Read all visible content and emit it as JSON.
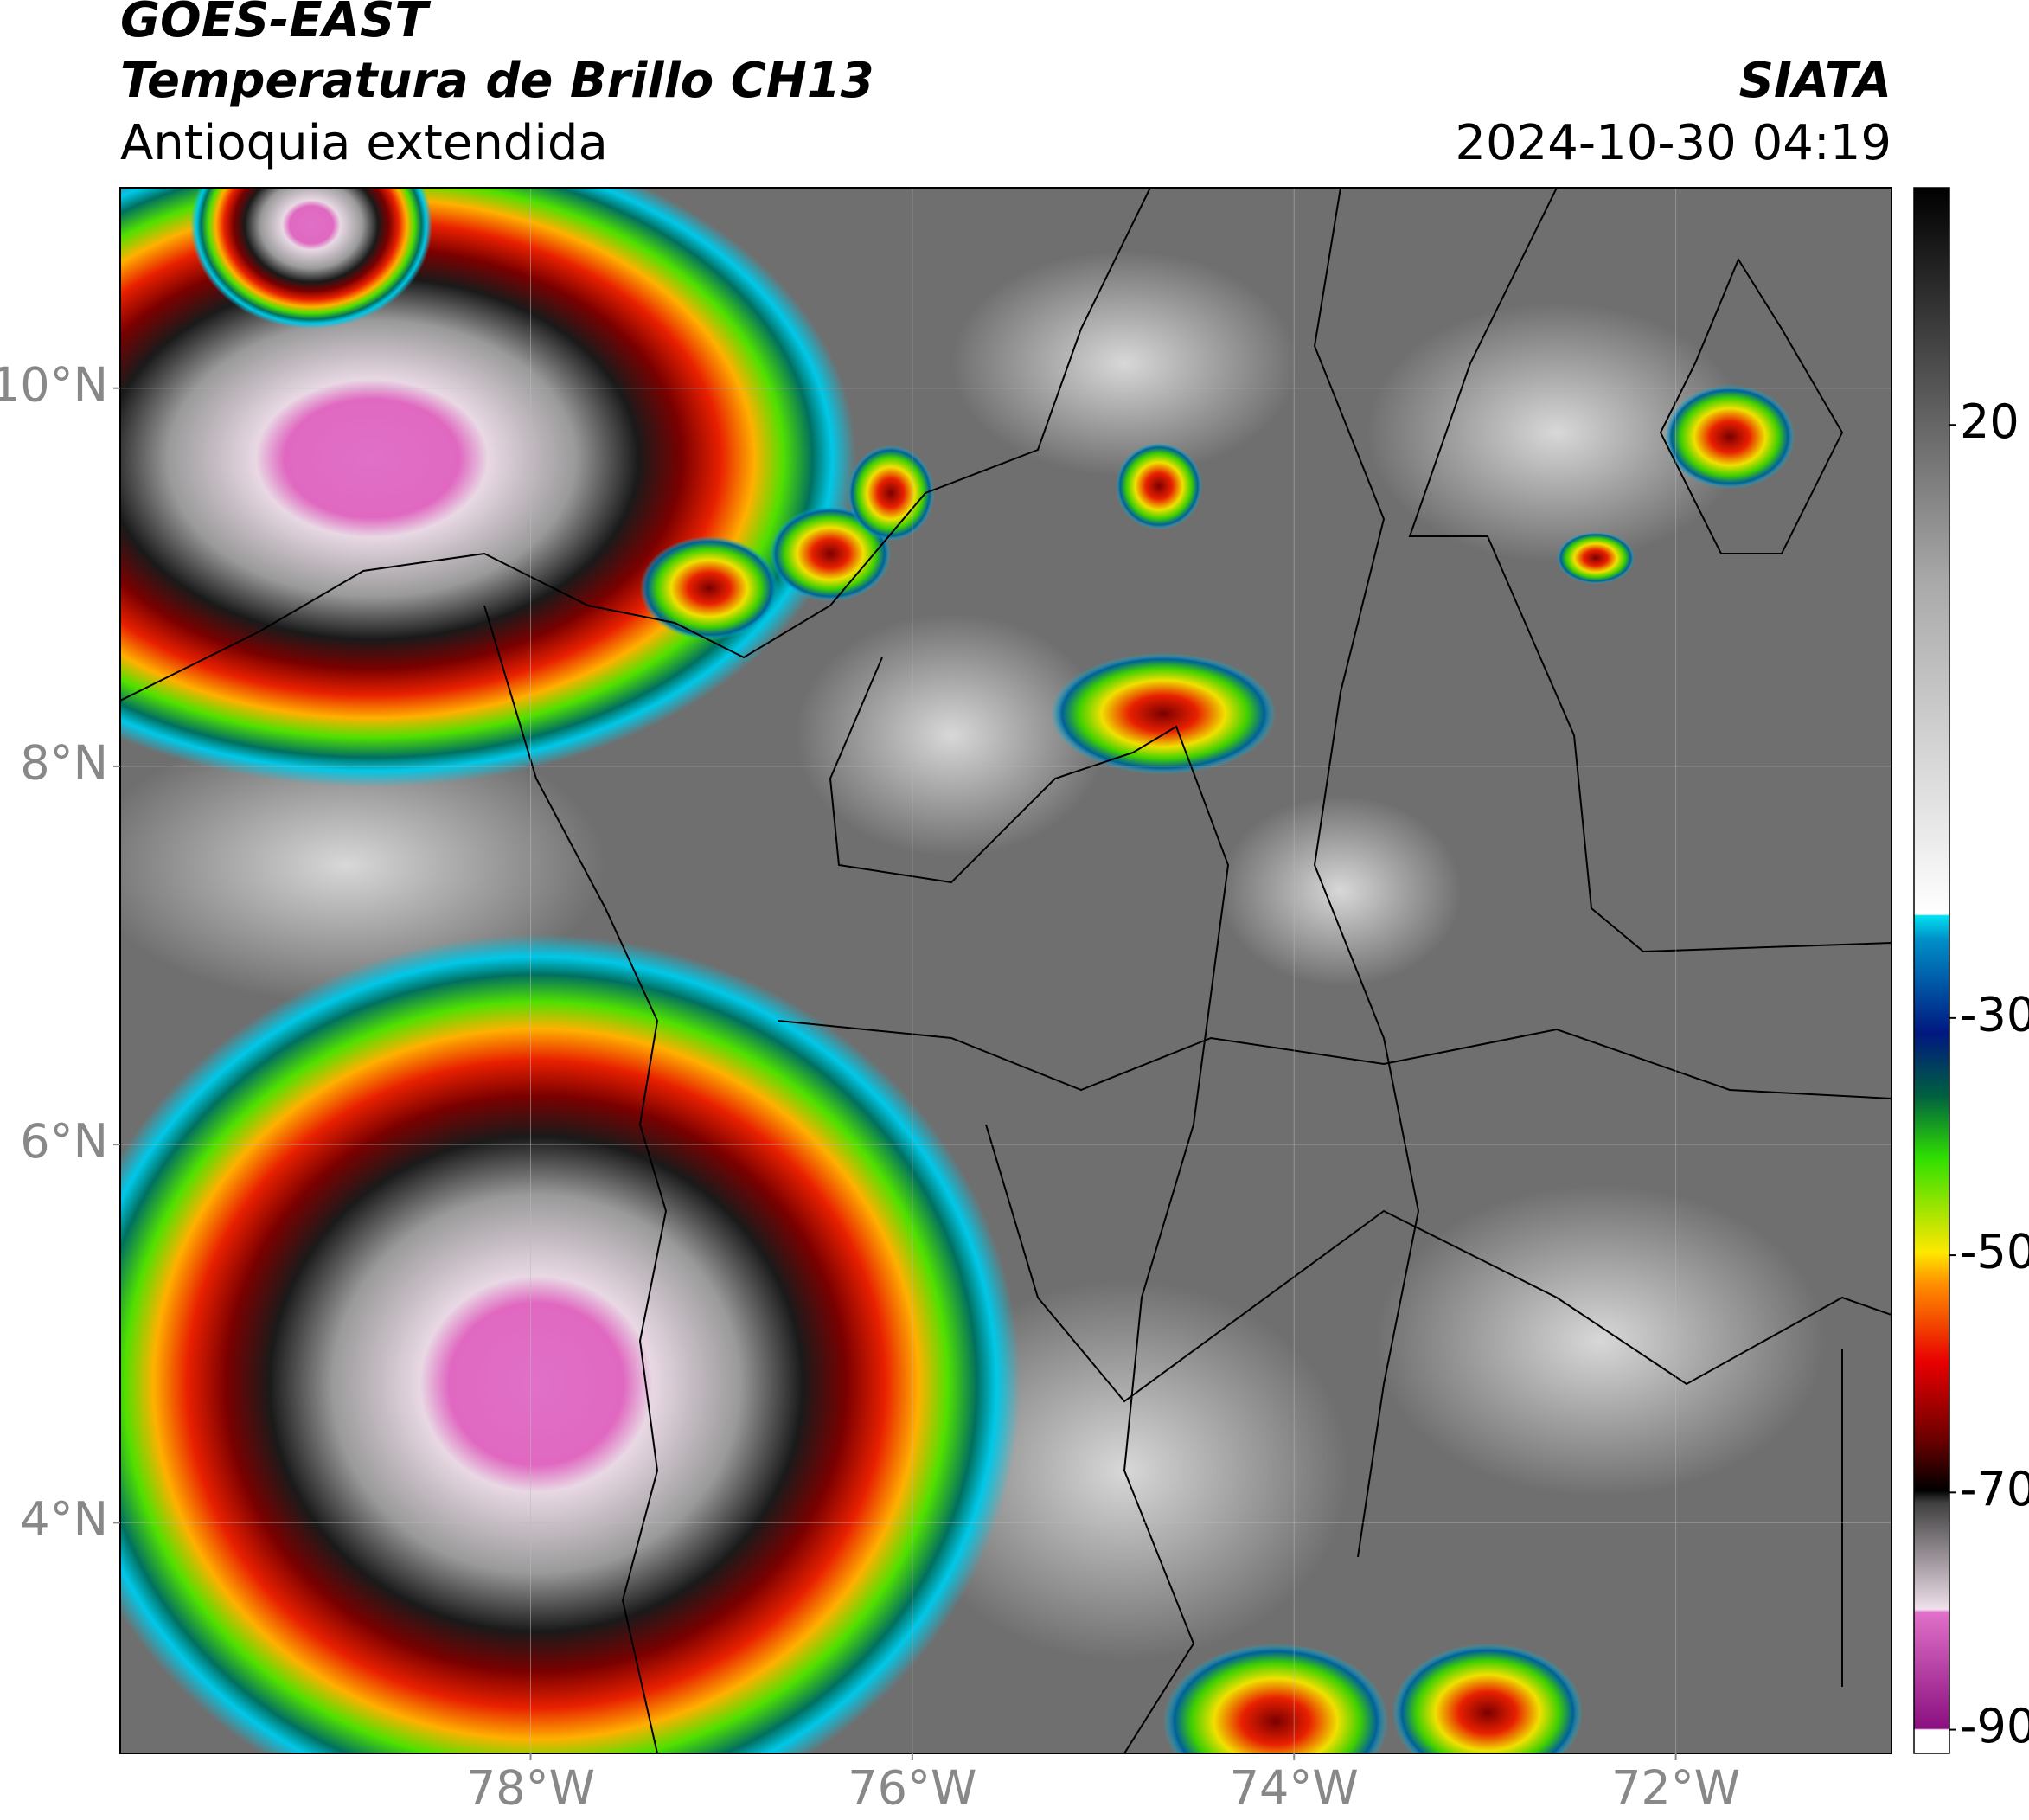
{
  "header": {
    "title": "GOES-EAST",
    "subtitle": "Temperatura de Brillo CH13",
    "region": "Antioquia extendida",
    "source": "SIATA",
    "datetime": "2024-10-30 04:19"
  },
  "map": {
    "xlim": [
      -80.15,
      -70.87
    ],
    "ylim": [
      2.78,
      11.06
    ],
    "xticks": [
      {
        "value": -78,
        "label": "78°W"
      },
      {
        "value": -76,
        "label": "76°W"
      },
      {
        "value": -74,
        "label": "74°W"
      },
      {
        "value": -72,
        "label": "72°W"
      }
    ],
    "yticks": [
      {
        "value": 4,
        "label": "4°N"
      },
      {
        "value": 6,
        "label": "6°N"
      },
      {
        "value": 8,
        "label": "8°N"
      },
      {
        "value": 10,
        "label": "10°N"
      }
    ],
    "grid": true
  },
  "colorbar": {
    "lim": [
      -92,
      40
    ],
    "ticks": [
      -90,
      -70,
      -50,
      -30,
      20
    ]
  }
}
